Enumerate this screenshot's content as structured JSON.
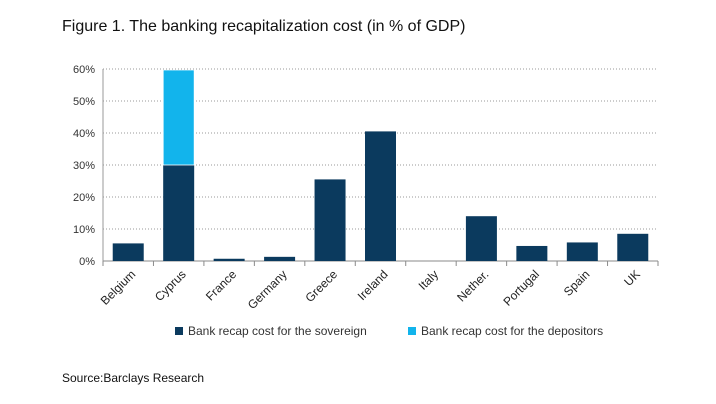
{
  "title": "Figure 1. The banking recapitalization cost (in % of GDP)",
  "source": "Source:Barclays Research",
  "chart_data": {
    "type": "bar",
    "stacked": true,
    "categories": [
      "Belgium",
      "Cyprus",
      "France",
      "Germany",
      "Greece",
      "Ireland",
      "Italy",
      "Nether.",
      "Portugal",
      "Spain",
      "UK"
    ],
    "series": [
      {
        "name": "Bank recap cost for the sovereign",
        "color": "#0b3a5e",
        "values": [
          5.5,
          30,
          0.7,
          1.3,
          25.5,
          40.5,
          0,
          14,
          4.7,
          5.8,
          8.5
        ]
      },
      {
        "name": "Bank recap cost for the depositors",
        "color": "#12b4ec",
        "values": [
          0,
          29.7,
          0,
          0,
          0,
          0,
          0,
          0,
          0,
          0,
          0
        ]
      }
    ],
    "yticks": [
      "0%",
      "10%",
      "20%",
      "30%",
      "40%",
      "50%",
      "60%"
    ],
    "ylim": [
      0,
      60
    ],
    "grid": true,
    "legend_position": "bottom"
  }
}
